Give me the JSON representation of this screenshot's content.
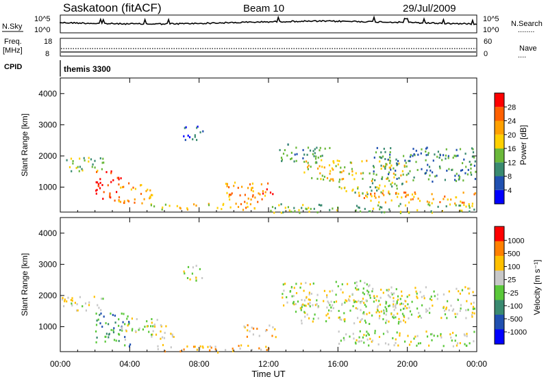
{
  "header": {
    "station": "Saskatoon  (fitACF)",
    "beam": "Beam 10",
    "date": "29/Jul/2009"
  },
  "nsky_panel": {
    "label": "N.Sky",
    "left_ticks": [
      "10^5",
      "10^0"
    ],
    "right_ticks": [
      "10^5",
      "10^0"
    ],
    "right_label": "N.Search",
    "right_legend": "........"
  },
  "freq_panel": {
    "label_line1": "Freq.",
    "label_line2": "[MHz]",
    "left_ticks": [
      "18",
      "8"
    ],
    "right_ticks": [
      "60",
      "0"
    ],
    "right_label": "Nave",
    "right_legend": "...."
  },
  "cpid": {
    "label": "CPID",
    "value": "themis 3300"
  },
  "chart_data": [
    {
      "type": "heatmap",
      "name": "power",
      "ylabel": "Slant Range [km]",
      "yticks": [
        "1000",
        "2000",
        "3000",
        "4000"
      ],
      "ylim": [
        200,
        4500
      ],
      "colorbar_label": "Power [dB]",
      "colorbar_ticks": [
        "28",
        "24",
        "20",
        "16",
        "12",
        "8",
        "4"
      ],
      "colors": [
        "#0000ff",
        "#2050b0",
        "#3a8a70",
        "#6ab83a",
        "#ffd000",
        "#ffa000",
        "#ff6000",
        "#ff0000"
      ],
      "echo_regions": [
        {
          "t0": 0.0,
          "t1": 2.5,
          "r0": 1500,
          "r1": 2000,
          "level": 3
        },
        {
          "t0": 2.0,
          "t1": 3.5,
          "r0": 600,
          "r1": 1600,
          "level": 7
        },
        {
          "t0": 3.3,
          "t1": 5.3,
          "r0": 500,
          "r1": 1200,
          "level": 5
        },
        {
          "t0": 5.0,
          "t1": 9.5,
          "r0": 300,
          "r1": 500,
          "level": 4
        },
        {
          "t0": 9.5,
          "t1": 12.0,
          "r0": 300,
          "r1": 1200,
          "level": 5
        },
        {
          "t0": 11.5,
          "t1": 12.3,
          "r0": 800,
          "r1": 1000,
          "level": 7
        },
        {
          "t0": 12.0,
          "t1": 24.0,
          "r0": 200,
          "r1": 500,
          "level": 3
        },
        {
          "t0": 12.5,
          "t1": 15.5,
          "r0": 1800,
          "r1": 2400,
          "level": 2
        },
        {
          "t0": 14.0,
          "t1": 20.0,
          "r0": 1200,
          "r1": 1900,
          "level": 4
        },
        {
          "t0": 16.0,
          "t1": 20.0,
          "r0": 800,
          "r1": 1200,
          "level": 3
        },
        {
          "t0": 17.0,
          "t1": 24.0,
          "r0": 500,
          "r1": 900,
          "level": 5
        },
        {
          "t0": 18.0,
          "t1": 24.0,
          "r0": 1200,
          "r1": 2300,
          "level": 2
        },
        {
          "t0": 7.0,
          "t1": 8.3,
          "r0": 2500,
          "r1": 3000,
          "level": 1
        }
      ]
    },
    {
      "type": "heatmap",
      "name": "velocity",
      "ylabel": "Slant Range [km]",
      "yticks": [
        "1000",
        "2000",
        "3000",
        "4000"
      ],
      "ylim": [
        200,
        4500
      ],
      "colorbar_label": "Velocity  [m s⁻¹]",
      "colorbar_ticks": [
        "1000",
        "500",
        "100",
        "25",
        "-25",
        "-100",
        "-500",
        "-1000"
      ],
      "colors": [
        "#0000ff",
        "#2050b0",
        "#3a8a70",
        "#5ac83a",
        "#c8c8c8",
        "#ffc000",
        "#ff8000",
        "#ff0000"
      ],
      "echo_regions": [
        {
          "t0": 0.0,
          "t1": 2.5,
          "r0": 1500,
          "r1": 2000,
          "level": 4
        },
        {
          "t0": 2.0,
          "t1": 4.0,
          "r0": 400,
          "r1": 1500,
          "level": 2
        },
        {
          "t0": 3.5,
          "t1": 6.5,
          "r0": 600,
          "r1": 1300,
          "level": 4
        },
        {
          "t0": 5.5,
          "t1": 12.0,
          "r0": 200,
          "r1": 450,
          "level": 5
        },
        {
          "t0": 10.5,
          "t1": 12.5,
          "r0": 700,
          "r1": 1100,
          "level": 5
        },
        {
          "t0": 12.5,
          "t1": 18.0,
          "r0": 1700,
          "r1": 2500,
          "level": 4
        },
        {
          "t0": 13.5,
          "t1": 20.0,
          "r0": 1100,
          "r1": 1900,
          "level": 4
        },
        {
          "t0": 16.0,
          "t1": 24.0,
          "r0": 400,
          "r1": 900,
          "level": 4
        },
        {
          "t0": 18.0,
          "t1": 24.0,
          "r0": 1300,
          "r1": 2300,
          "level": 4
        },
        {
          "t0": 7.0,
          "t1": 8.3,
          "r0": 2500,
          "r1": 3000,
          "level": 4
        }
      ]
    }
  ],
  "xaxis": {
    "label": "Time UT",
    "ticks": [
      "00:00",
      "04:00",
      "08:00",
      "12:00",
      "16:00",
      "20:00",
      "00:00"
    ],
    "range_hours": [
      0,
      24
    ]
  }
}
